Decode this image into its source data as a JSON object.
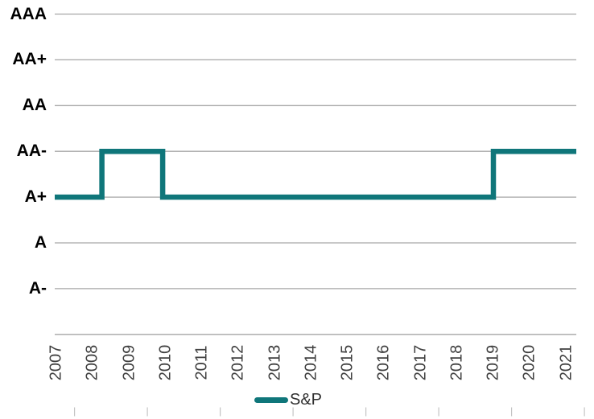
{
  "chart_data": {
    "type": "line",
    "subtype": "step",
    "title": "",
    "xlabel": "",
    "ylabel": "",
    "grid": "horizontal",
    "x_axis": {
      "tick_labels": [
        "2007",
        "2008",
        "2009",
        "2010",
        "2011",
        "2012",
        "2013",
        "2014",
        "2015",
        "2016",
        "2017",
        "2018",
        "2019",
        "2020",
        "2021"
      ],
      "label_rotation_deg": -90
    },
    "y_axis": {
      "tick_labels_top_to_bottom": [
        "AAA",
        "AA+",
        "AA",
        "AA-",
        "A+",
        "A",
        "A-"
      ]
    },
    "series": [
      {
        "name": "S&P",
        "color": "#0F767A",
        "steps": [
          {
            "from_year": 2007.0,
            "to_year": 2008.25,
            "rating": "A+"
          },
          {
            "from_year": 2008.25,
            "to_year": 2009.92,
            "rating": "AA-"
          },
          {
            "from_year": 2009.92,
            "to_year": 2019.0,
            "rating": "A+"
          },
          {
            "from_year": 2019.0,
            "to_year": 2021.3,
            "rating": "AA-"
          }
        ]
      }
    ],
    "legend": {
      "position": "bottom-center",
      "entries": [
        "S&P"
      ]
    }
  },
  "colors": {
    "series_teal": "#0F767A",
    "gridline": "#A6A6A6",
    "bottom_tick": "#C4C4C4",
    "y_axis_label": "#000000",
    "x_axis_label": "#404040",
    "legend_text": "#303030",
    "background": "#FFFFFF"
  }
}
